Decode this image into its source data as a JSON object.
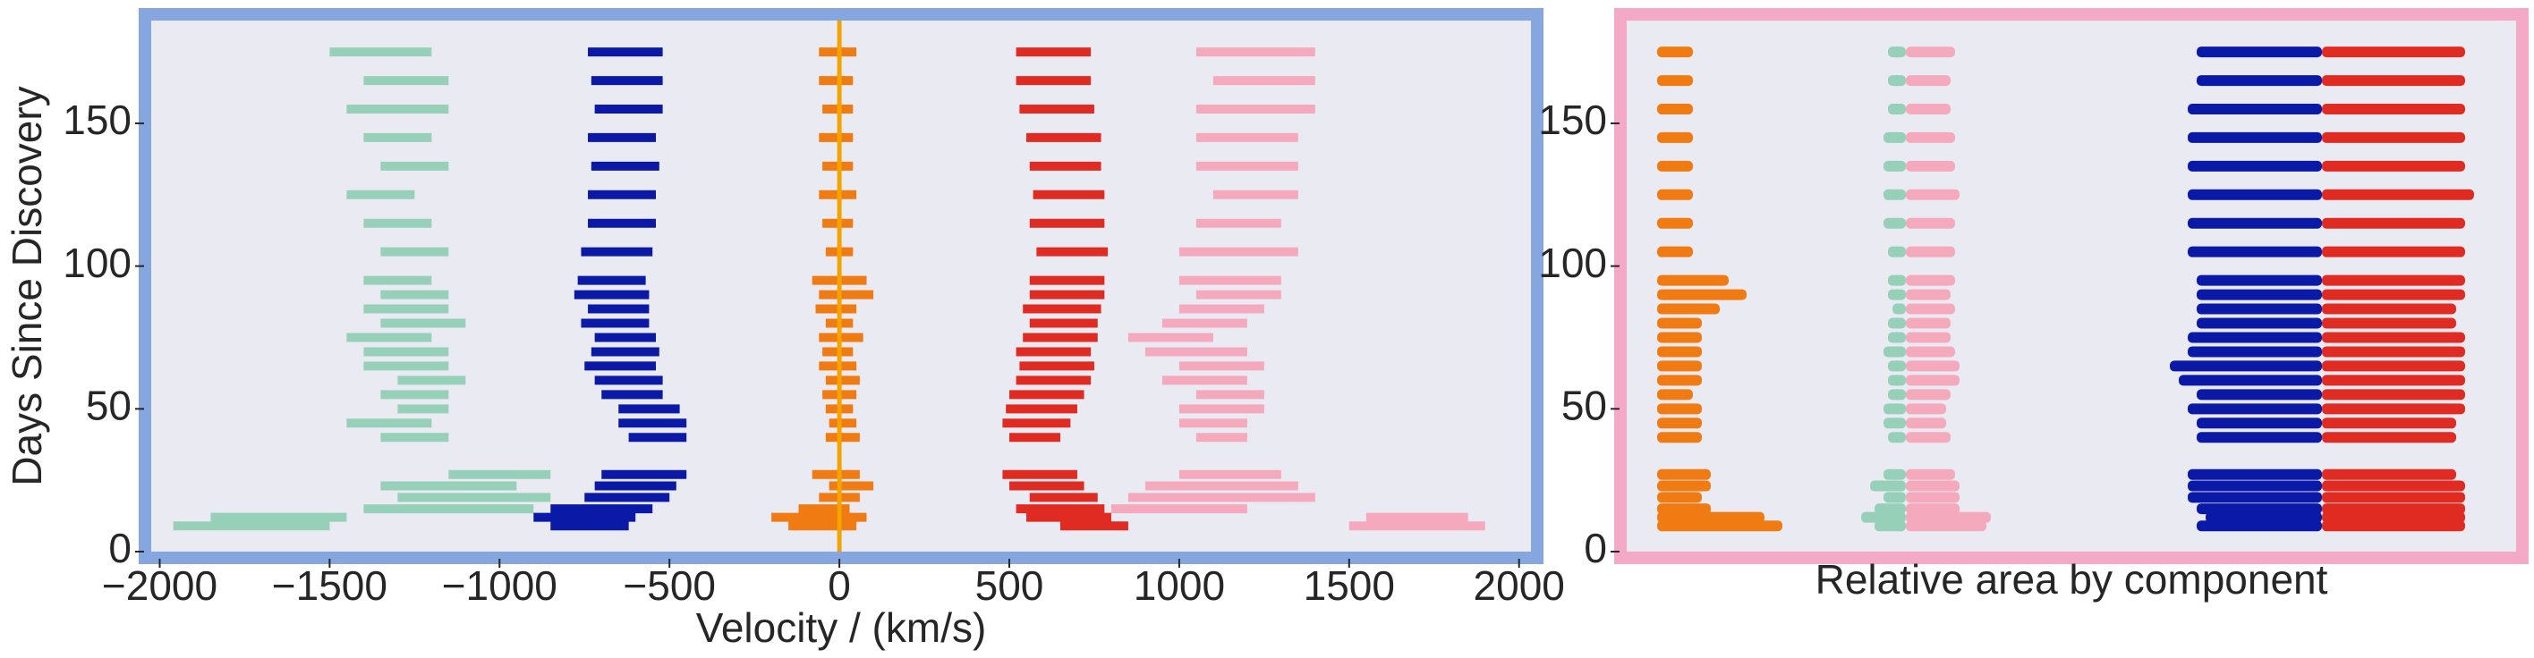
{
  "chart_data": [
    {
      "type": "range",
      "xlabel": "Velocity / (km/s)",
      "ylabel": "Days Since Discovery",
      "xlim": [
        -2025,
        2035
      ],
      "ylim": [
        0,
        186
      ],
      "xticks": [
        {
          "value": -2000,
          "label": "−2000"
        },
        {
          "value": -1500,
          "label": "−1500"
        },
        {
          "value": -1000,
          "label": "−1000"
        },
        {
          "value": -500,
          "label": "−500"
        },
        0,
        500,
        1000,
        1500,
        2000
      ],
      "yticks": [
        0,
        50,
        100,
        150
      ],
      "reference_line": 0,
      "reference_color": "#f5a300",
      "days": [
        9,
        12,
        15,
        19,
        23,
        27,
        40,
        45,
        50,
        55,
        60,
        65,
        70,
        75,
        80,
        85,
        90,
        95,
        105,
        115,
        125,
        135,
        145,
        155,
        165,
        175
      ],
      "series": [
        {
          "color": "#96d0b9",
          "low": [
            -1960,
            -1850,
            -1400,
            -1300,
            -1350,
            -1150,
            -1350,
            -1450,
            -1300,
            -1350,
            -1300,
            -1400,
            -1400,
            -1450,
            -1350,
            -1400,
            -1350,
            -1400,
            -1350,
            -1400,
            -1450,
            -1350,
            -1400,
            -1450,
            -1400,
            -1500
          ],
          "high": [
            -1500,
            -1450,
            -900,
            -850,
            -950,
            -850,
            -1150,
            -1200,
            -1150,
            -1150,
            -1100,
            -1150,
            -1150,
            -1200,
            -1100,
            -1150,
            -1150,
            -1200,
            -1150,
            -1200,
            -1250,
            -1150,
            -1200,
            -1150,
            -1150,
            -1200
          ]
        },
        {
          "color": "#0a1aa6",
          "low": [
            -850,
            -900,
            -850,
            -750,
            -720,
            -700,
            -620,
            -650,
            -650,
            -700,
            -720,
            -750,
            -730,
            -720,
            -760,
            -740,
            -780,
            -770,
            -760,
            -740,
            -740,
            -730,
            -740,
            -720,
            -730,
            -740
          ],
          "high": [
            -620,
            -600,
            -550,
            -500,
            -480,
            -450,
            -450,
            -450,
            -470,
            -520,
            -520,
            -540,
            -530,
            -540,
            -560,
            -560,
            -560,
            -570,
            -550,
            -540,
            -540,
            -530,
            -540,
            -520,
            -520,
            -520
          ]
        },
        {
          "color": "#f07b12",
          "low": [
            -150,
            -200,
            -120,
            -60,
            -30,
            -80,
            -40,
            -30,
            -40,
            -50,
            -40,
            -60,
            -50,
            -60,
            -40,
            -70,
            -60,
            -80,
            -40,
            -50,
            -60,
            -50,
            -60,
            -50,
            -60,
            -60
          ],
          "high": [
            50,
            80,
            30,
            60,
            100,
            60,
            60,
            50,
            40,
            50,
            60,
            50,
            40,
            70,
            40,
            50,
            100,
            80,
            40,
            40,
            50,
            40,
            40,
            40,
            40,
            50
          ]
        },
        {
          "color": "#e02b22",
          "low": [
            650,
            550,
            520,
            560,
            500,
            480,
            500,
            480,
            490,
            500,
            520,
            530,
            520,
            540,
            560,
            540,
            560,
            560,
            580,
            560,
            570,
            560,
            550,
            530,
            520,
            520
          ],
          "high": [
            850,
            800,
            780,
            760,
            720,
            700,
            650,
            680,
            700,
            720,
            740,
            750,
            740,
            760,
            760,
            770,
            780,
            780,
            790,
            780,
            780,
            770,
            770,
            750,
            740,
            740
          ]
        },
        {
          "color": "#f4a9bd",
          "low": [
            1500,
            1550,
            800,
            850,
            900,
            1000,
            1050,
            1000,
            1000,
            1050,
            950,
            1000,
            900,
            850,
            950,
            1000,
            1050,
            1000,
            1000,
            1050,
            1100,
            1050,
            1050,
            1050,
            1100,
            1050
          ],
          "high": [
            1900,
            1850,
            1200,
            1400,
            1350,
            1300,
            1200,
            1200,
            1250,
            1250,
            1200,
            1250,
            1200,
            1100,
            1200,
            1250,
            1300,
            1300,
            1350,
            1300,
            1350,
            1350,
            1350,
            1400,
            1400,
            1400
          ]
        }
      ]
    },
    {
      "type": "area",
      "xlabel": "Relative area by component",
      "ylim": [
        0,
        186
      ],
      "yticks": [
        0,
        50,
        100,
        150
      ],
      "days": [
        9,
        12,
        15,
        19,
        23,
        27,
        40,
        45,
        50,
        55,
        60,
        65,
        70,
        75,
        80,
        85,
        90,
        95,
        105,
        115,
        125,
        135,
        145,
        155,
        165,
        175
      ],
      "series": [
        {
          "color": "#f07b12",
          "values": [
            14,
            12,
            6,
            5,
            6,
            6,
            5,
            5,
            5,
            4,
            5,
            5,
            5,
            5,
            5,
            7,
            10,
            8,
            4,
            4,
            4,
            4,
            4,
            4,
            4,
            4
          ]
        },
        {
          "color": "#96d0b9",
          "values": [
            3.5,
            5,
            3.5,
            2.5,
            4,
            2.5,
            2,
            2.5,
            2.5,
            2,
            2,
            2,
            2.5,
            2,
            2,
            1.5,
            2,
            2,
            2,
            2.5,
            2.5,
            2.5,
            2.5,
            2,
            2,
            2
          ]
        },
        {
          "color": "#f4a9bd",
          "values": [
            9,
            9.5,
            6,
            6,
            6,
            5.5,
            5,
            4.5,
            4.5,
            5,
            6,
            6,
            5.5,
            5,
            5,
            5.5,
            5,
            5.5,
            5.5,
            5.5,
            6,
            5.5,
            5.5,
            5,
            5,
            5.5
          ]
        },
        {
          "color": "#0a1aa6",
          "values": [
            14,
            13,
            14,
            15,
            15,
            15,
            14,
            14,
            15,
            14,
            16,
            17,
            15,
            15,
            14,
            14,
            14,
            14,
            15,
            15,
            15,
            15,
            15,
            15,
            14,
            14
          ]
        },
        {
          "color": "#e02b22",
          "values": [
            16,
            16,
            16,
            16,
            16,
            15,
            15,
            15,
            16,
            16,
            16,
            16,
            16,
            16,
            15,
            15,
            16,
            16,
            16,
            16,
            17,
            16,
            16,
            16,
            16,
            16
          ]
        }
      ]
    }
  ]
}
